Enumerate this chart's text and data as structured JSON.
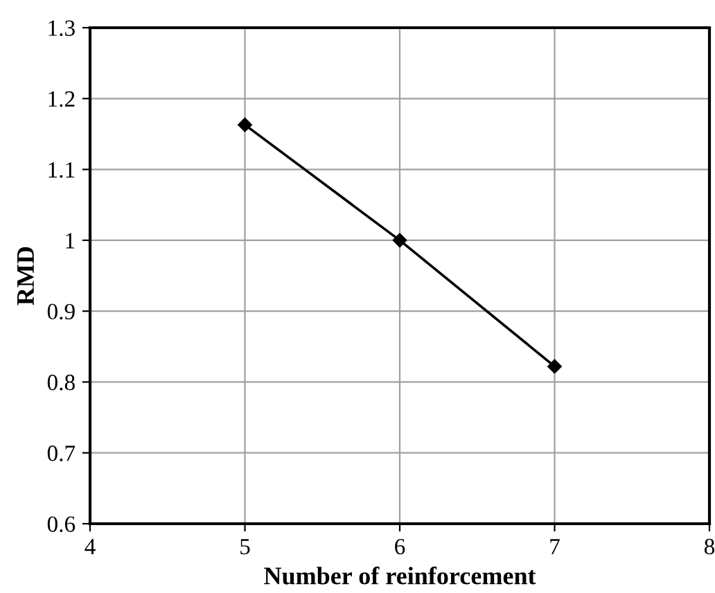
{
  "chart_data": {
    "type": "line",
    "xlabel": "Number of reinforcement",
    "ylabel": "RMD",
    "x": [
      5,
      6,
      7
    ],
    "series": [
      {
        "color": "#000000",
        "values": [
          1.163,
          1.0,
          0.822
        ]
      }
    ],
    "xlim": [
      4,
      8
    ],
    "xticks": [
      4,
      5,
      6,
      7,
      8
    ],
    "ylim": [
      0.6,
      1.3
    ],
    "yticks": [
      {
        "value": 0.6,
        "label": "0.6"
      },
      {
        "value": 0.7,
        "label": "0.7"
      },
      {
        "value": 0.8,
        "label": "0.8"
      },
      {
        "value": 0.9,
        "label": "0.9"
      },
      {
        "value": 1.0,
        "label": "1"
      },
      {
        "value": 1.1,
        "label": "1.1"
      },
      {
        "value": 1.2,
        "label": "1.2"
      },
      {
        "value": 1.3,
        "label": "1.3"
      }
    ],
    "grid": true,
    "marker": "diamond",
    "line_style": "solid",
    "legend": false
  }
}
